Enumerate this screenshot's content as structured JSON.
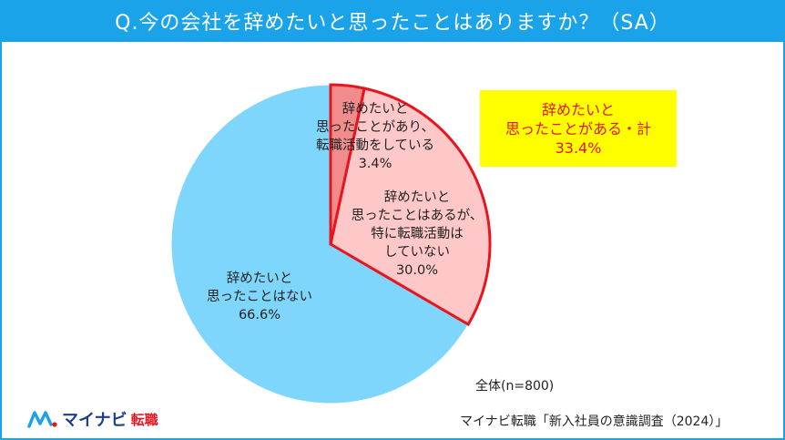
{
  "title": "Q.今の会社を辞めたいと思ったことはありますか？（SA）",
  "chart_data": {
    "type": "pie",
    "slices": [
      {
        "label_lines": [
          "辞めたいと",
          "思ったことがあり、",
          "転職活動をしている"
        ],
        "value_text": "3.4%",
        "value": 3.4,
        "color": "#f08c8c",
        "edge": "#e8141e"
      },
      {
        "label_lines": [
          "辞めたいと",
          "思ったことはあるが、",
          "特に転職活動は",
          "していない"
        ],
        "value_text": "30.0%",
        "value": 30.0,
        "color": "#ffc8c8",
        "edge": "#e8141e"
      },
      {
        "label_lines": [
          "辞めたいと",
          "思ったことはない"
        ],
        "value_text": "66.6%",
        "value": 66.6,
        "color": "#7fd6fd",
        "edge": "#ffffff"
      }
    ]
  },
  "callout": {
    "lines": [
      "辞めたいと",
      "思ったことがある・計",
      "33.4%"
    ],
    "background": "#ffff00",
    "text_color": "#e8141e"
  },
  "sample_note": "全体(n=800)",
  "source_note": "マイナビ転職「新入社員の意識調査（2024）」",
  "logo": {
    "brand": "マイナビ",
    "service": "転職",
    "icon": "mynavi-logo-icon"
  },
  "colors": {
    "accent": "#1aa3e8",
    "highlight_border": "#e8141e"
  }
}
